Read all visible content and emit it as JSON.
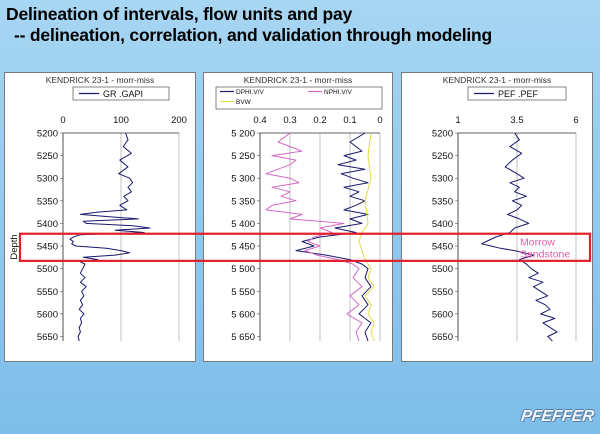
{
  "slide": {
    "title_line1": "Delineation of intervals, flow units and pay",
    "title_line2": "-- delineation, correlation, and validation through modeling",
    "zone_color": "#e0202a",
    "zone_label_line1": "Morrow",
    "zone_label_line2": "Sandstone",
    "zone_label_color": "#e65aa8",
    "zone_depth_top": 5425,
    "zone_depth_bottom": 5485,
    "logo_text": "PFEFFER"
  },
  "chart_data": [
    {
      "type": "line",
      "title": "KENDRICK 23-1 - morr-miss",
      "ylabel": "Depth",
      "ylim": [
        5200,
        5660
      ],
      "yticks": [
        "5200",
        "5250",
        "5300",
        "5350",
        "5400",
        "5450",
        "5500",
        "5550",
        "5600",
        "5650"
      ],
      "xlim": [
        0,
        200
      ],
      "xticks": [
        "0",
        "100",
        "200"
      ],
      "reversed_x": false,
      "legend": "top",
      "series": [
        {
          "name": "GR .GAPI",
          "color": "#1a1a6e",
          "depth": [
            5200,
            5215,
            5230,
            5245,
            5260,
            5275,
            5290,
            5300,
            5310,
            5320,
            5330,
            5340,
            5350,
            5360,
            5370,
            5375,
            5380,
            5385,
            5390,
            5395,
            5400,
            5405,
            5410,
            5415,
            5420,
            5425,
            5430,
            5435,
            5440,
            5445,
            5450,
            5455,
            5460,
            5465,
            5470,
            5475,
            5480,
            5485,
            5490,
            5500,
            5510,
            5520,
            5530,
            5540,
            5550,
            5560,
            5570,
            5580,
            5590,
            5600,
            5610,
            5620,
            5630,
            5640,
            5650,
            5660
          ],
          "value": [
            108,
            112,
            104,
            118,
            98,
            112,
            96,
            115,
            120,
            112,
            118,
            105,
            112,
            98,
            110,
            60,
            30,
            80,
            130,
            35,
            40,
            120,
            150,
            90,
            140,
            30,
            18,
            12,
            18,
            15,
            22,
            75,
            100,
            115,
            90,
            35,
            60,
            30,
            38,
            34,
            30,
            38,
            30,
            40,
            32,
            36,
            30,
            34,
            28,
            36,
            30,
            32,
            28,
            30,
            26,
            28
          ]
        }
      ]
    },
    {
      "type": "line",
      "title": "KENDRICK 23-1 - morr-miss",
      "ylabel": "",
      "ylim": [
        5200,
        5660
      ],
      "yticks": [
        "5 200",
        "5 250",
        "5 300",
        "5 350",
        "5 400",
        "5 450",
        "5 500",
        "5 550",
        "5 600",
        "5 650"
      ],
      "xlim": [
        0.4,
        0
      ],
      "xticks": [
        "0.4",
        "0.3",
        "0.2",
        "0.1",
        "0"
      ],
      "reversed_x": true,
      "legend": "top",
      "series": [
        {
          "name": "DPHI.V/V",
          "color": "#1a1a6e",
          "depth": [
            5200,
            5220,
            5240,
            5250,
            5260,
            5270,
            5280,
            5290,
            5300,
            5310,
            5320,
            5330,
            5340,
            5350,
            5360,
            5370,
            5380,
            5390,
            5400,
            5410,
            5420,
            5430,
            5440,
            5450,
            5460,
            5470,
            5480,
            5490,
            5500,
            5520,
            5540,
            5560,
            5580,
            5600,
            5620,
            5640,
            5660
          ],
          "value": [
            0.05,
            0.1,
            0.06,
            0.12,
            0.08,
            0.14,
            0.05,
            0.13,
            0.09,
            0.04,
            0.12,
            0.07,
            0.1,
            0.05,
            0.08,
            0.12,
            0.04,
            0.1,
            0.06,
            0.15,
            0.08,
            0.2,
            0.26,
            0.22,
            0.28,
            0.18,
            0.1,
            0.06,
            0.04,
            0.05,
            0.03,
            0.06,
            0.04,
            0.07,
            0.03,
            0.05,
            0.04
          ]
        },
        {
          "name": "NPHI.V/V",
          "color": "#d46ac8",
          "depth": [
            5200,
            5220,
            5240,
            5250,
            5260,
            5270,
            5280,
            5290,
            5300,
            5310,
            5320,
            5330,
            5340,
            5350,
            5360,
            5370,
            5380,
            5390,
            5400,
            5410,
            5420,
            5430,
            5440,
            5450,
            5460,
            5470,
            5480,
            5490,
            5500,
            5520,
            5540,
            5560,
            5580,
            5600,
            5620,
            5640,
            5660
          ],
          "value": [
            0.3,
            0.34,
            0.26,
            0.36,
            0.28,
            0.3,
            0.34,
            0.38,
            0.3,
            0.27,
            0.36,
            0.3,
            0.33,
            0.28,
            0.36,
            0.38,
            0.26,
            0.3,
            0.12,
            0.2,
            0.16,
            0.22,
            0.24,
            0.2,
            0.25,
            0.21,
            0.14,
            0.09,
            0.07,
            0.09,
            0.06,
            0.1,
            0.07,
            0.11,
            0.06,
            0.08,
            0.07
          ]
        },
        {
          "name": "BVW",
          "color": "#e0dc4a",
          "depth": [
            5200,
            5250,
            5300,
            5350,
            5400,
            5420,
            5440,
            5460,
            5480,
            5500,
            5520,
            5540,
            5560,
            5580,
            5600,
            5620,
            5640,
            5660
          ],
          "value": [
            0.03,
            0.04,
            0.03,
            0.05,
            0.04,
            0.06,
            0.07,
            0.06,
            0.05,
            0.03,
            0.04,
            0.02,
            0.05,
            0.03,
            0.04,
            0.02,
            0.03,
            0.02
          ]
        }
      ]
    },
    {
      "type": "line",
      "title": "KENDRICK 23-1 - morr-miss",
      "ylabel": "",
      "ylim": [
        5200,
        5660
      ],
      "yticks": [
        "5200",
        "5250",
        "5300",
        "5350",
        "5400",
        "5450",
        "5500",
        "5550",
        "5600",
        "5650"
      ],
      "xlim": [
        1,
        6
      ],
      "xticks": [
        "1",
        "3.5",
        "6"
      ],
      "reversed_x": false,
      "legend": "top",
      "series": [
        {
          "name": "PEF .PEF",
          "color": "#1a1a6e",
          "depth": [
            5200,
            5215,
            5230,
            5245,
            5260,
            5275,
            5290,
            5300,
            5310,
            5320,
            5330,
            5340,
            5350,
            5360,
            5370,
            5380,
            5390,
            5400,
            5410,
            5420,
            5430,
            5440,
            5445,
            5450,
            5455,
            5460,
            5465,
            5470,
            5480,
            5490,
            5500,
            5510,
            5520,
            5530,
            5540,
            5550,
            5560,
            5570,
            5580,
            5590,
            5600,
            5610,
            5620,
            5630,
            5640,
            5650,
            5660
          ],
          "value": [
            3.4,
            3.6,
            3.2,
            3.7,
            3.3,
            3.0,
            3.5,
            3.8,
            3.2,
            3.6,
            3.4,
            3.9,
            3.3,
            3.7,
            3.5,
            3.1,
            3.6,
            4.0,
            3.4,
            3.2,
            2.6,
            2.2,
            2.0,
            2.4,
            2.8,
            3.4,
            3.8,
            4.2,
            3.6,
            3.9,
            4.1,
            4.4,
            4.0,
            4.6,
            4.2,
            4.5,
            4.8,
            4.3,
            4.7,
            4.9,
            4.5,
            5.1,
            4.6,
            4.9,
            5.2,
            4.8,
            5.0
          ]
        }
      ]
    }
  ]
}
